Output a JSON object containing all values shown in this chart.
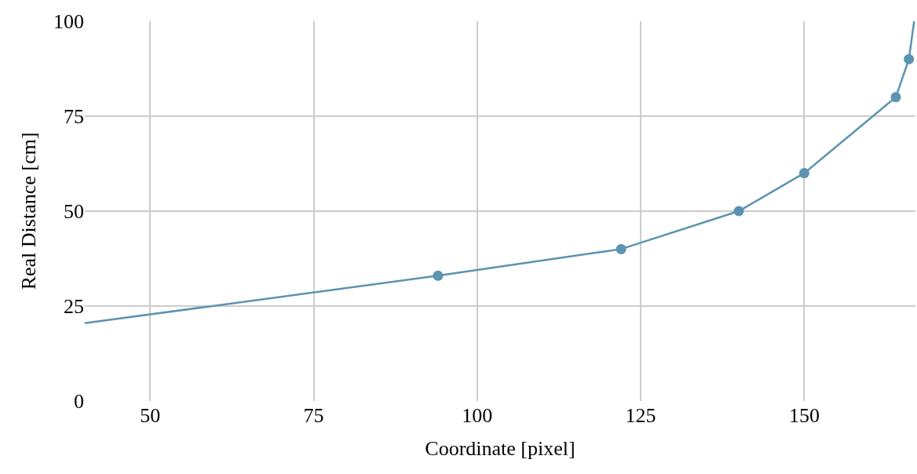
{
  "chart_data": {
    "type": "line",
    "xlabel": "Coordinate [pixel]",
    "ylabel": "Real Distance [cm]",
    "series": [
      {
        "color": "#5b93b0",
        "marker": "none",
        "x": [
          40,
          94,
          122,
          140,
          150,
          164,
          166,
          166.8
        ],
        "values": [
          20.5,
          33,
          40,
          50,
          60,
          80,
          90,
          100
        ]
      },
      {
        "type": "scatter",
        "color": "#5b93b0",
        "marker": "circle",
        "x": [
          94,
          122,
          140,
          150,
          164,
          166
        ],
        "values": [
          33,
          40,
          50,
          60,
          80,
          90
        ]
      }
    ],
    "xlim": [
      40,
      167
    ],
    "xticks": [
      50,
      75,
      100,
      125,
      150
    ],
    "ylim": [
      0,
      100
    ],
    "yticks": [
      0,
      25,
      50,
      75,
      100
    ],
    "grid": true
  }
}
